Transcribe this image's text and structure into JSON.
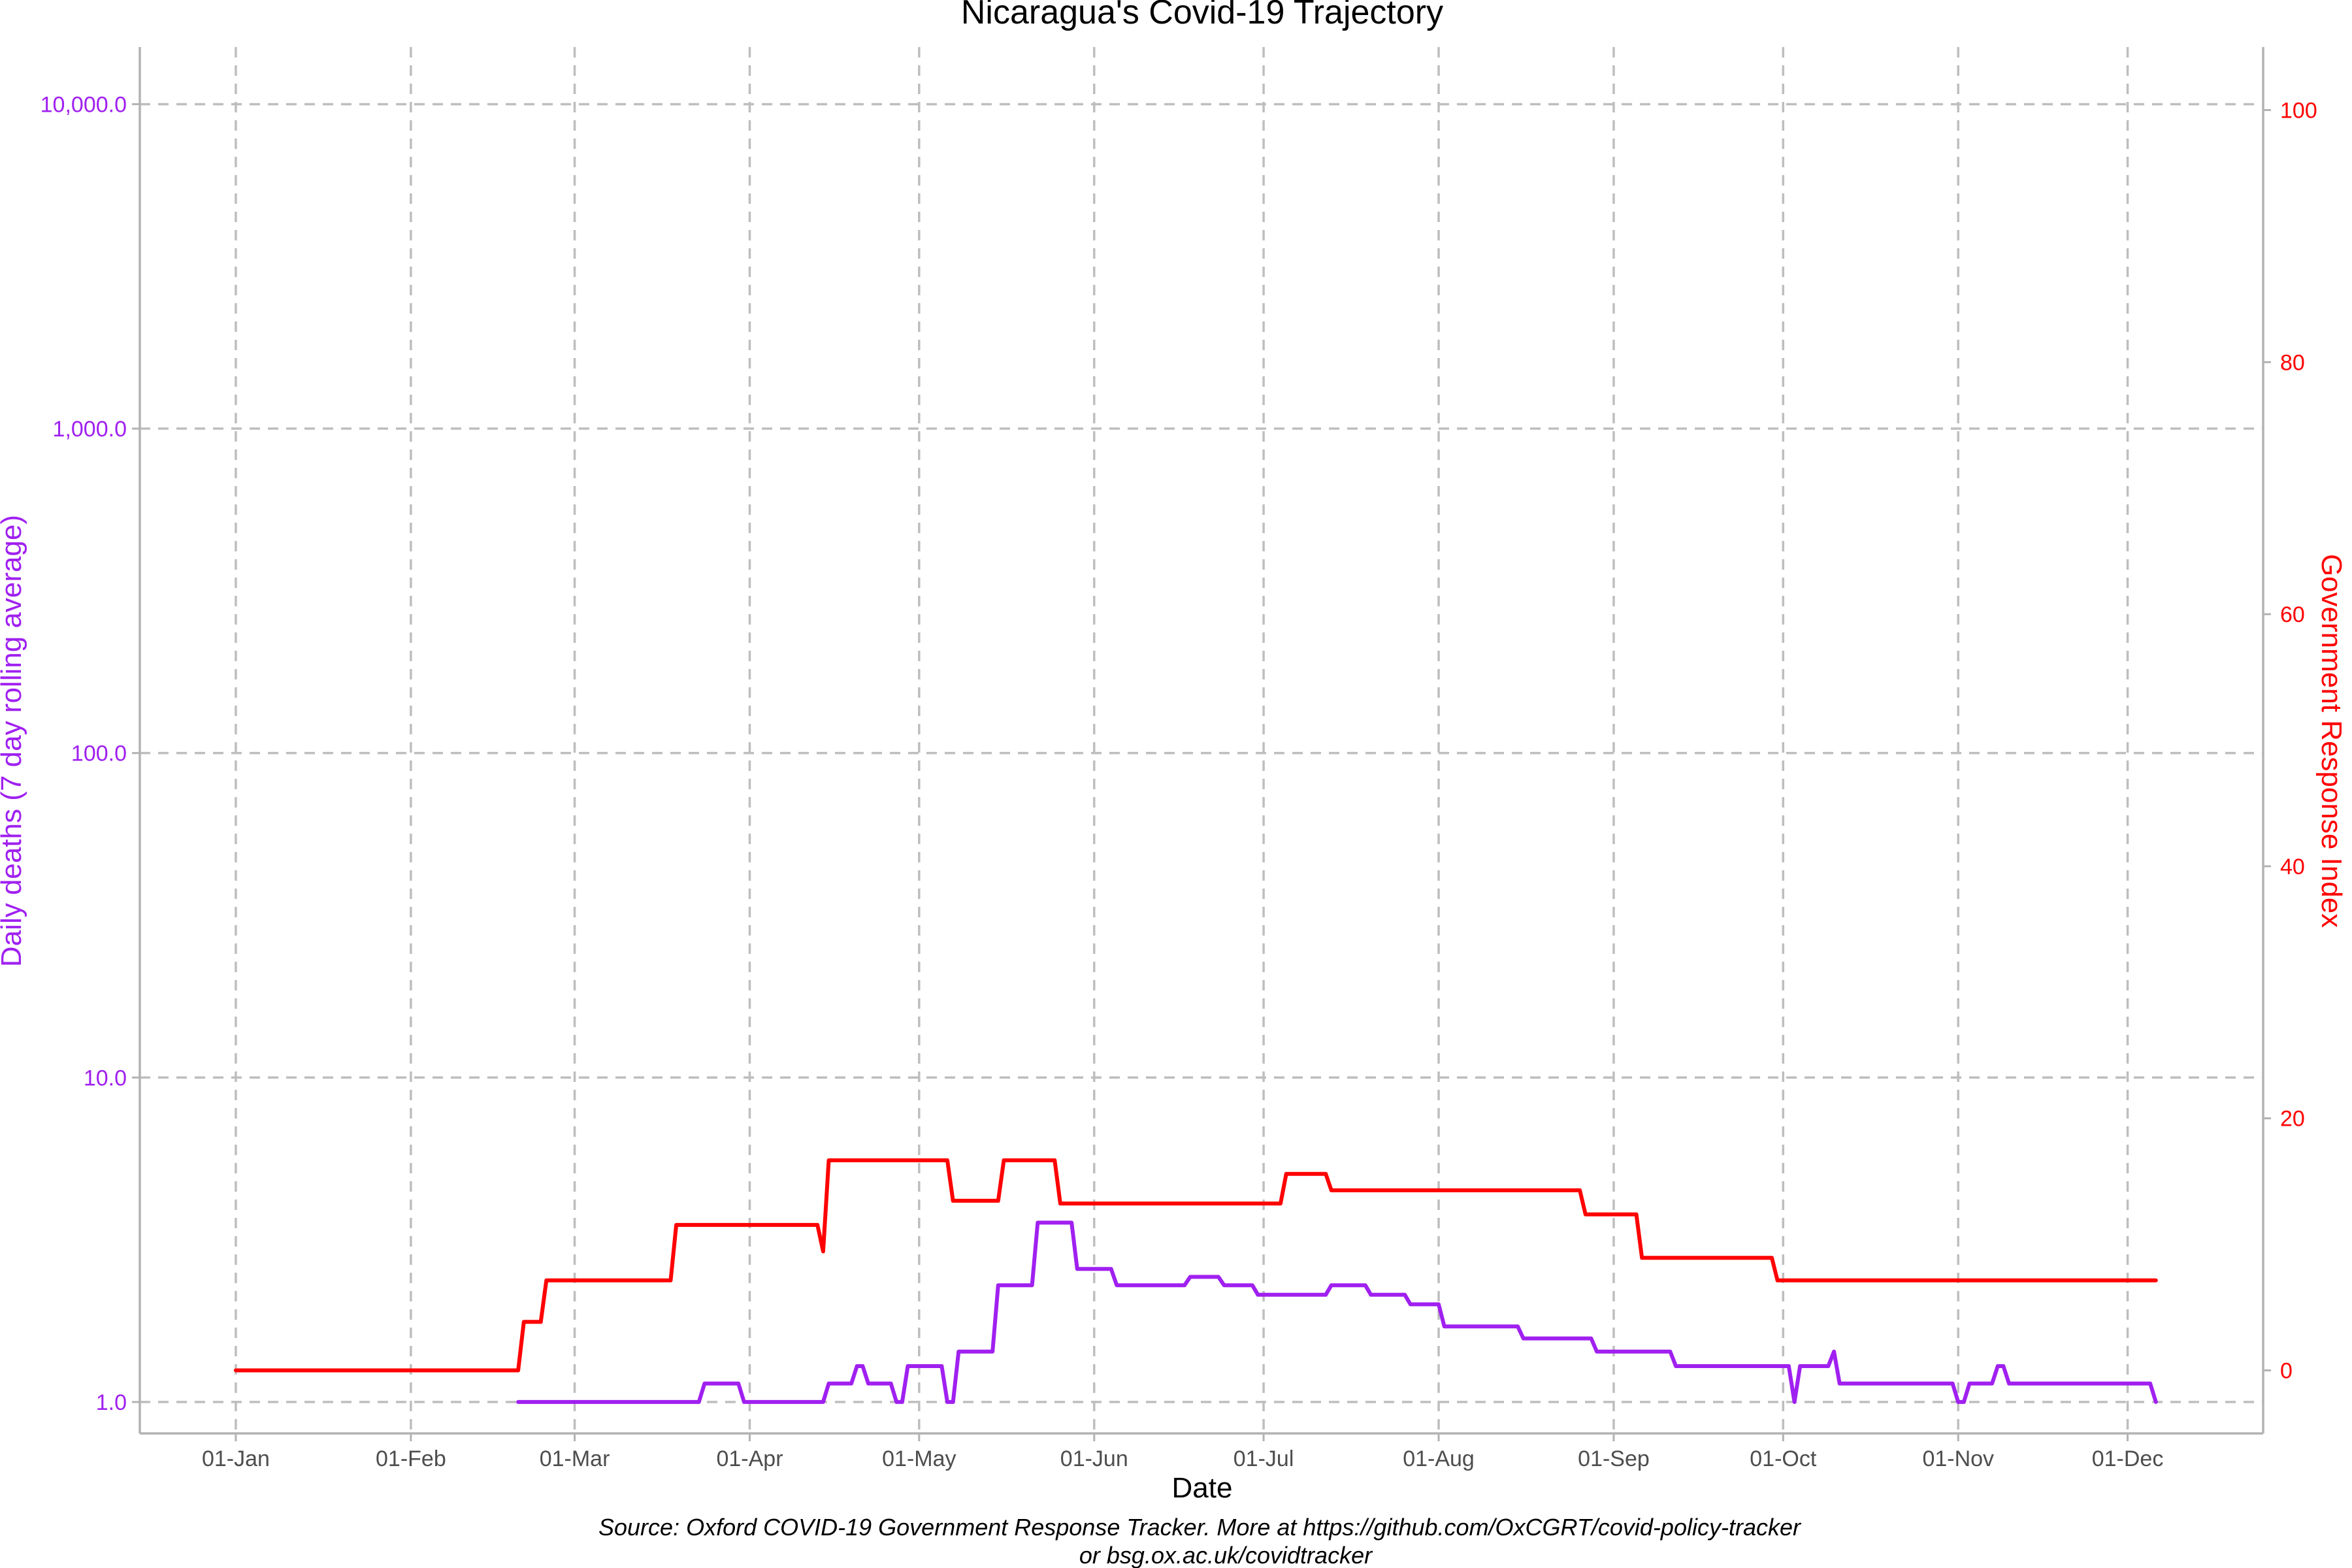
{
  "chart_data": {
    "type": "line",
    "title": "Nicaragua's Covid-19 Trajectory",
    "xlabel": "Date",
    "ylabel_left": "Daily deaths (7 day rolling average)",
    "ylabel_right": "Government Response Index",
    "caption_line1": "Source: Oxford COVID-19 Government Response Tracker. More at https://github.com/OxCGRT/covid-policy-tracker",
    "caption_line2": "or bsg.ox.ac.uk/covidtracker",
    "x_ticks": [
      {
        "day": 0,
        "label": "01-Jan"
      },
      {
        "day": 31,
        "label": "01-Feb"
      },
      {
        "day": 60,
        "label": "01-Mar"
      },
      {
        "day": 91,
        "label": "01-Apr"
      },
      {
        "day": 121,
        "label": "01-May"
      },
      {
        "day": 152,
        "label": "01-Jun"
      },
      {
        "day": 182,
        "label": "01-Jul"
      },
      {
        "day": 213,
        "label": "01-Aug"
      },
      {
        "day": 244,
        "label": "01-Sep"
      },
      {
        "day": 274,
        "label": "01-Oct"
      },
      {
        "day": 305,
        "label": "01-Nov"
      },
      {
        "day": 335,
        "label": "01-Dec"
      }
    ],
    "xlim": [
      -17,
      359
    ],
    "y_left": {
      "scale": "log10",
      "ylim": [
        0.8,
        15000
      ],
      "ticks": [
        {
          "value": 1,
          "label": "1.0"
        },
        {
          "value": 10,
          "label": "10.0"
        },
        {
          "value": 100,
          "label": "100.0"
        },
        {
          "value": 1000,
          "label": "1,000.0"
        },
        {
          "value": 10000,
          "label": "10,000.0"
        }
      ]
    },
    "y_right": {
      "scale": "linear",
      "ylim": [
        -5,
        105
      ],
      "ticks": [
        {
          "value": 0,
          "label": "0"
        },
        {
          "value": 20,
          "label": "20"
        },
        {
          "value": 40,
          "label": "40"
        },
        {
          "value": 60,
          "label": "60"
        },
        {
          "value": 80,
          "label": "80"
        },
        {
          "value": 100,
          "label": "100"
        }
      ]
    },
    "grid": true,
    "colors": {
      "deaths": "#a020f0",
      "response": "#ff0000"
    },
    "series": [
      {
        "axis": "right",
        "color": "#ff0000",
        "points": [
          [
            0,
            0
          ],
          [
            50,
            0
          ],
          [
            51,
            3.85
          ],
          [
            54,
            3.85
          ],
          [
            55,
            7.14
          ],
          [
            77,
            7.14
          ],
          [
            78,
            11.54
          ],
          [
            103,
            11.54
          ],
          [
            104,
            9.44
          ],
          [
            105,
            16.67
          ],
          [
            126,
            16.67
          ],
          [
            127,
            13.46
          ],
          [
            135,
            13.46
          ],
          [
            136,
            16.67
          ],
          [
            145,
            16.67
          ],
          [
            146,
            13.24
          ],
          [
            185,
            13.24
          ],
          [
            186,
            15.59
          ],
          [
            193,
            15.59
          ],
          [
            194,
            14.29
          ],
          [
            238,
            14.29
          ],
          [
            239,
            12.38
          ],
          [
            248,
            12.38
          ],
          [
            249,
            8.93
          ],
          [
            272,
            8.93
          ],
          [
            273,
            7.14
          ],
          [
            340,
            7.14
          ]
        ]
      },
      {
        "axis": "left",
        "color": "#a020f0",
        "points": [
          [
            50,
            1.0
          ],
          [
            82,
            1.0
          ],
          [
            83,
            1.14
          ],
          [
            89,
            1.14
          ],
          [
            90,
            1.0
          ],
          [
            104,
            1.0
          ],
          [
            105,
            1.14
          ],
          [
            109,
            1.14
          ],
          [
            110,
            1.29
          ],
          [
            111,
            1.29
          ],
          [
            112,
            1.14
          ],
          [
            116,
            1.14
          ],
          [
            117,
            1.0
          ],
          [
            118,
            1.0
          ],
          [
            119,
            1.29
          ],
          [
            125,
            1.29
          ],
          [
            126,
            1.0
          ],
          [
            127,
            1.0
          ],
          [
            128,
            1.43
          ],
          [
            134,
            1.43
          ],
          [
            135,
            2.29
          ],
          [
            141,
            2.29
          ],
          [
            142,
            3.57
          ],
          [
            148,
            3.57
          ],
          [
            149,
            2.57
          ],
          [
            155,
            2.57
          ],
          [
            156,
            2.29
          ],
          [
            168,
            2.29
          ],
          [
            169,
            2.43
          ],
          [
            174,
            2.43
          ],
          [
            175,
            2.29
          ],
          [
            180,
            2.29
          ],
          [
            181,
            2.14
          ],
          [
            193,
            2.14
          ],
          [
            194,
            2.29
          ],
          [
            200,
            2.29
          ],
          [
            201,
            2.14
          ],
          [
            207,
            2.14
          ],
          [
            208,
            2.0
          ],
          [
            213,
            2.0
          ],
          [
            214,
            1.71
          ],
          [
            227,
            1.71
          ],
          [
            228,
            1.57
          ],
          [
            240,
            1.57
          ],
          [
            241,
            1.43
          ],
          [
            254,
            1.43
          ],
          [
            255,
            1.29
          ],
          [
            275,
            1.29
          ],
          [
            276,
            1.0
          ],
          [
            277,
            1.29
          ],
          [
            282,
            1.29
          ],
          [
            283,
            1.43
          ],
          [
            284,
            1.14
          ],
          [
            304,
            1.14
          ],
          [
            305,
            1.0
          ],
          [
            306,
            1.0
          ],
          [
            307,
            1.14
          ],
          [
            311,
            1.14
          ],
          [
            312,
            1.29
          ],
          [
            313,
            1.29
          ],
          [
            314,
            1.14
          ],
          [
            339,
            1.14
          ],
          [
            340,
            1.0
          ]
        ]
      }
    ]
  }
}
